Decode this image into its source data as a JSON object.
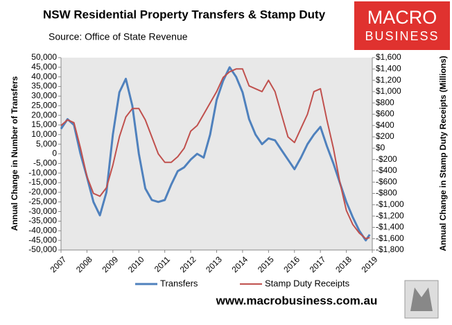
{
  "chart_data": {
    "type": "line",
    "title": "NSW Residential Property Transfers & Stamp Duty",
    "subtitle": "Source: Office of State Revenue",
    "logo": [
      "MACRO",
      "BUSINESS"
    ],
    "website": "www.macrobusiness.com.au",
    "y_label": "Annual Change in Number of Transfers",
    "y2_label": "Annual Change in Stamp Duty Receipts (Millions)",
    "x": [
      2007,
      2007.25,
      2007.5,
      2007.75,
      2008,
      2008.25,
      2008.5,
      2008.75,
      2009,
      2009.25,
      2009.5,
      2009.75,
      2010,
      2010.25,
      2010.5,
      2010.75,
      2011,
      2011.25,
      2011.5,
      2011.75,
      2012,
      2012.25,
      2012.5,
      2012.75,
      2013,
      2013.25,
      2013.5,
      2013.75,
      2014,
      2014.25,
      2014.5,
      2014.75,
      2015,
      2015.25,
      2015.5,
      2015.75,
      2016,
      2016.25,
      2016.5,
      2016.75,
      2017,
      2017.25,
      2017.5,
      2017.75,
      2018,
      2018.25,
      2018.5,
      2018.75,
      2018.9
    ],
    "series": [
      {
        "name": "Transfers",
        "color": "#4f81bd",
        "values": [
          13000,
          18000,
          15000,
          0,
          -12000,
          -25000,
          -32000,
          -20000,
          10000,
          32000,
          39000,
          25000,
          0,
          -18000,
          -24000,
          -25000,
          -24000,
          -16000,
          -9000,
          -7000,
          -3000,
          0,
          -2000,
          10000,
          28000,
          38000,
          45000,
          40000,
          32000,
          18000,
          10000,
          5000,
          8000,
          7000,
          2000,
          -3000,
          -8000,
          -2000,
          5000,
          10000,
          14000,
          4000,
          -5000,
          -15000,
          -25000,
          -33000,
          -40000,
          -45000,
          -42000
        ]
      },
      {
        "name": "Stamp Duty Receipts",
        "color": "#c0504d",
        "axis": "y2",
        "values": [
          400,
          500,
          450,
          0,
          -500,
          -800,
          -850,
          -700,
          -300,
          200,
          550,
          700,
          700,
          500,
          200,
          -100,
          -250,
          -250,
          -150,
          0,
          300,
          400,
          600,
          800,
          1000,
          1250,
          1350,
          1400,
          1400,
          1100,
          1050,
          1000,
          1200,
          1000,
          600,
          200,
          100,
          350,
          600,
          1000,
          1050,
          500,
          0,
          -600,
          -1100,
          -1350,
          -1500,
          -1600,
          -1580
        ]
      }
    ],
    "xlim": [
      2007,
      2019
    ],
    "xticks": [
      2007,
      2008,
      2009,
      2010,
      2011,
      2012,
      2013,
      2014,
      2015,
      2016,
      2017,
      2018,
      2019
    ],
    "ylim": [
      -50000,
      50000
    ],
    "yticks": [
      {
        "value": -50000,
        "label": "-50,000"
      },
      {
        "value": -45000,
        "label": "-45,000"
      },
      {
        "value": -40000,
        "label": "-40,000"
      },
      {
        "value": -35000,
        "label": "-35,000"
      },
      {
        "value": -30000,
        "label": "-30,000"
      },
      {
        "value": -25000,
        "label": "-25,000"
      },
      {
        "value": -20000,
        "label": "-20,000"
      },
      {
        "value": -15000,
        "label": "-15,000"
      },
      {
        "value": -10000,
        "label": "-10,000"
      },
      {
        "value": -5000,
        "label": "-5,000"
      },
      0,
      {
        "value": 5000,
        "label": "5,000"
      },
      {
        "value": 10000,
        "label": "10,000"
      },
      {
        "value": 15000,
        "label": "15,000"
      },
      {
        "value": 20000,
        "label": "20,000"
      },
      {
        "value": 25000,
        "label": "25,000"
      },
      {
        "value": 30000,
        "label": "30,000"
      },
      {
        "value": 35000,
        "label": "35,000"
      },
      {
        "value": 40000,
        "label": "40,000"
      },
      {
        "value": 45000,
        "label": "45,000"
      },
      {
        "value": 50000,
        "label": "50,000"
      }
    ],
    "y2lim": [
      -1800,
      1600
    ],
    "y2ticks": [
      {
        "value": -1800,
        "label": "-$1,800"
      },
      {
        "value": -1600,
        "label": "-$1,600"
      },
      {
        "value": -1400,
        "label": "-$1,400"
      },
      {
        "value": -1200,
        "label": "-$1,200"
      },
      {
        "value": -1000,
        "label": "-$1,000"
      },
      {
        "value": -800,
        "label": "-$800"
      },
      {
        "value": -600,
        "label": "-$600"
      },
      {
        "value": -400,
        "label": "-$400"
      },
      {
        "value": -200,
        "label": "-$200"
      },
      {
        "value": 0,
        "label": "$0"
      },
      {
        "value": 200,
        "label": "$200"
      },
      {
        "value": 400,
        "label": "$400"
      },
      {
        "value": 600,
        "label": "$600"
      },
      {
        "value": 800,
        "label": "$800"
      },
      {
        "value": 1000,
        "label": "$1,000"
      },
      {
        "value": 1200,
        "label": "$1,200"
      },
      {
        "value": 1400,
        "label": "$1,400"
      },
      {
        "value": 1600,
        "label": "$1,600"
      }
    ],
    "legend": "bottom"
  }
}
